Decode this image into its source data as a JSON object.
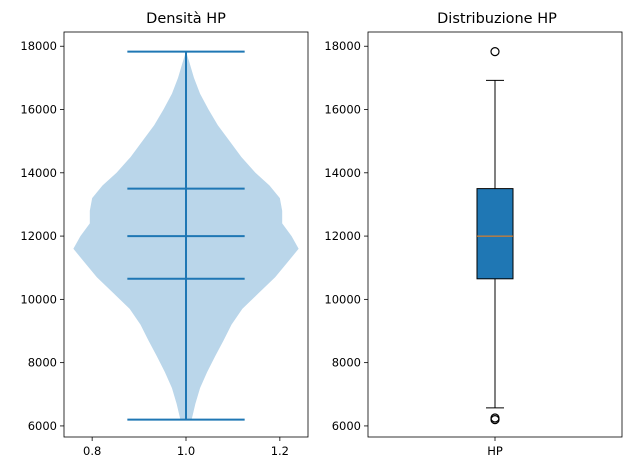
{
  "chart_data": [
    {
      "type": "violin",
      "title": "Densità HP",
      "xlabel": "",
      "ylabel": "",
      "x_ticks": [
        "0.8",
        "1.0",
        "1.2"
      ],
      "x_tick_values": [
        0.8,
        1.0,
        1.2
      ],
      "xlim": [
        0.74,
        1.26
      ],
      "y_ticks": [
        "6000",
        "8000",
        "10000",
        "12000",
        "14000",
        "16000",
        "18000"
      ],
      "y_tick_values": [
        6000,
        8000,
        10000,
        12000,
        14000,
        16000,
        18000
      ],
      "ylim": [
        5650,
        18450
      ],
      "position": 1.0,
      "min": 6200,
      "q1": 10650,
      "median": 12000,
      "q3": 13500,
      "max": 17830,
      "density_halfwidth": [
        [
          6200,
          0.012
        ],
        [
          6700,
          0.02
        ],
        [
          7200,
          0.03
        ],
        [
          7700,
          0.045
        ],
        [
          8200,
          0.062
        ],
        [
          8700,
          0.08
        ],
        [
          9200,
          0.097
        ],
        [
          9700,
          0.12
        ],
        [
          10200,
          0.155
        ],
        [
          10700,
          0.19
        ],
        [
          11200,
          0.218
        ],
        [
          11600,
          0.24
        ],
        [
          12000,
          0.225
        ],
        [
          12400,
          0.205
        ],
        [
          12800,
          0.205
        ],
        [
          13200,
          0.2
        ],
        [
          13600,
          0.178
        ],
        [
          14000,
          0.148
        ],
        [
          14500,
          0.118
        ],
        [
          15000,
          0.093
        ],
        [
          15500,
          0.068
        ],
        [
          16000,
          0.048
        ],
        [
          16500,
          0.03
        ],
        [
          17000,
          0.017
        ],
        [
          17500,
          0.007
        ],
        [
          17830,
          0.0
        ]
      ],
      "colors": {
        "body": "#bad6ea",
        "lines": "#1f77b4"
      }
    },
    {
      "type": "box",
      "title": "Distribuzione HP",
      "xlabel": "",
      "ylabel": "",
      "categories": [
        "HP"
      ],
      "y_ticks": [
        "6000",
        "8000",
        "10000",
        "12000",
        "14000",
        "16000",
        "18000"
      ],
      "y_tick_values": [
        6000,
        8000,
        10000,
        12000,
        14000,
        16000,
        18000
      ],
      "ylim": [
        5650,
        18450
      ],
      "whisker_low": 6570,
      "q1": 10650,
      "median": 12000,
      "q3": 13500,
      "whisker_high": 16920,
      "outliers": [
        6200,
        6250,
        17830
      ],
      "colors": {
        "box": "#1f77b4",
        "median": "#ff7f0e",
        "lines": "#000000"
      }
    }
  ]
}
